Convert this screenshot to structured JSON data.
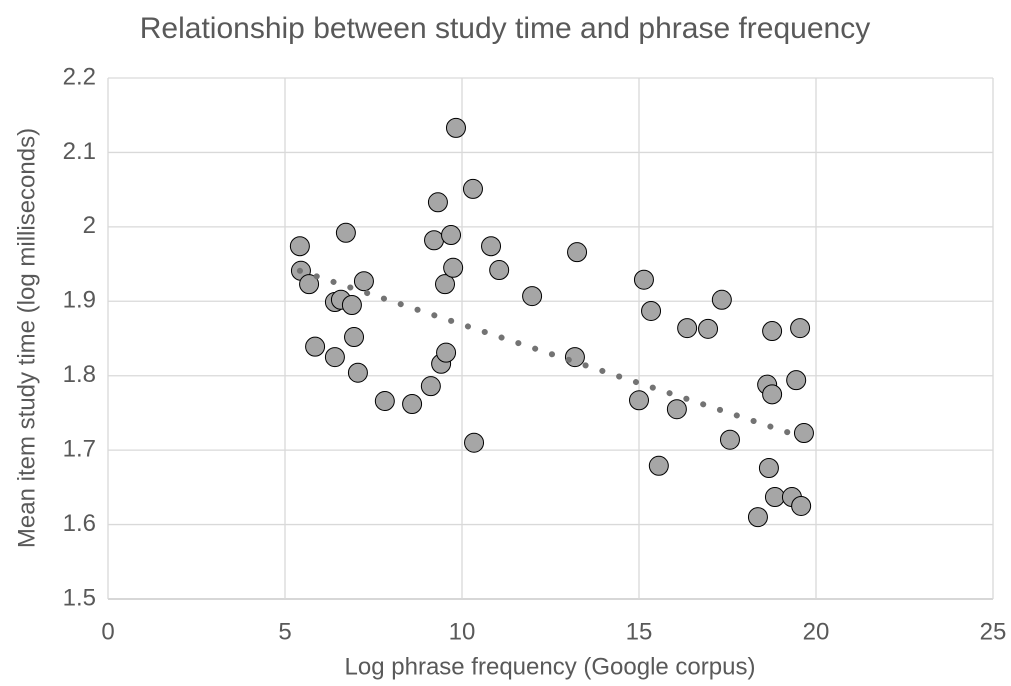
{
  "chart_data": {
    "type": "scatter",
    "title": "Relationship between study time and phrase frequency",
    "x_label": "Log phrase frequency (Google corpus)",
    "y_label": "Mean item study time (log milliseconds)",
    "xlim": [
      0,
      25
    ],
    "xticks": [
      0,
      5,
      10,
      15,
      20,
      25
    ],
    "ylim": [
      1.5,
      2.2
    ],
    "yticks": [
      1.5,
      1.6,
      1.7,
      1.8,
      1.9,
      2,
      2.1,
      2.2
    ],
    "grid": true,
    "series": [
      {
        "color": "#a6a6a6",
        "x": [
          5.42,
          5.45,
          5.68,
          5.85,
          6.41,
          6.41,
          6.58,
          6.72,
          6.89,
          6.95,
          7.06,
          7.23,
          7.82,
          8.59,
          9.12,
          9.21,
          9.32,
          9.41,
          9.52,
          9.55,
          9.69,
          9.75,
          9.83,
          10.31,
          10.34,
          10.82,
          11.05,
          11.98,
          13.19,
          13.25,
          15.0,
          15.14,
          15.34,
          15.56,
          16.07,
          16.36,
          16.95,
          17.34,
          17.57,
          18.36,
          18.62,
          18.67,
          18.76,
          18.76,
          18.84,
          19.32,
          19.44,
          19.55,
          19.58,
          19.66
        ],
        "values": [
          1.974,
          1.941,
          1.923,
          1.839,
          1.825,
          1.899,
          1.902,
          1.992,
          1.895,
          1.852,
          1.804,
          1.927,
          1.766,
          1.762,
          1.786,
          1.982,
          2.033,
          1.816,
          1.923,
          1.831,
          1.989,
          1.945,
          2.133,
          2.051,
          1.71,
          1.974,
          1.942,
          1.907,
          1.825,
          1.966,
          1.767,
          1.929,
          1.887,
          1.679,
          1.755,
          1.864,
          1.863,
          1.902,
          1.714,
          1.61,
          1.788,
          1.676,
          1.86,
          1.775,
          1.637,
          1.637,
          1.794,
          1.864,
          1.625,
          1.723
        ]
      }
    ],
    "trendline": {
      "color": "#737373",
      "x": [
        5.42,
        19.58
      ],
      "values": [
        1.941,
        1.718
      ]
    }
  }
}
